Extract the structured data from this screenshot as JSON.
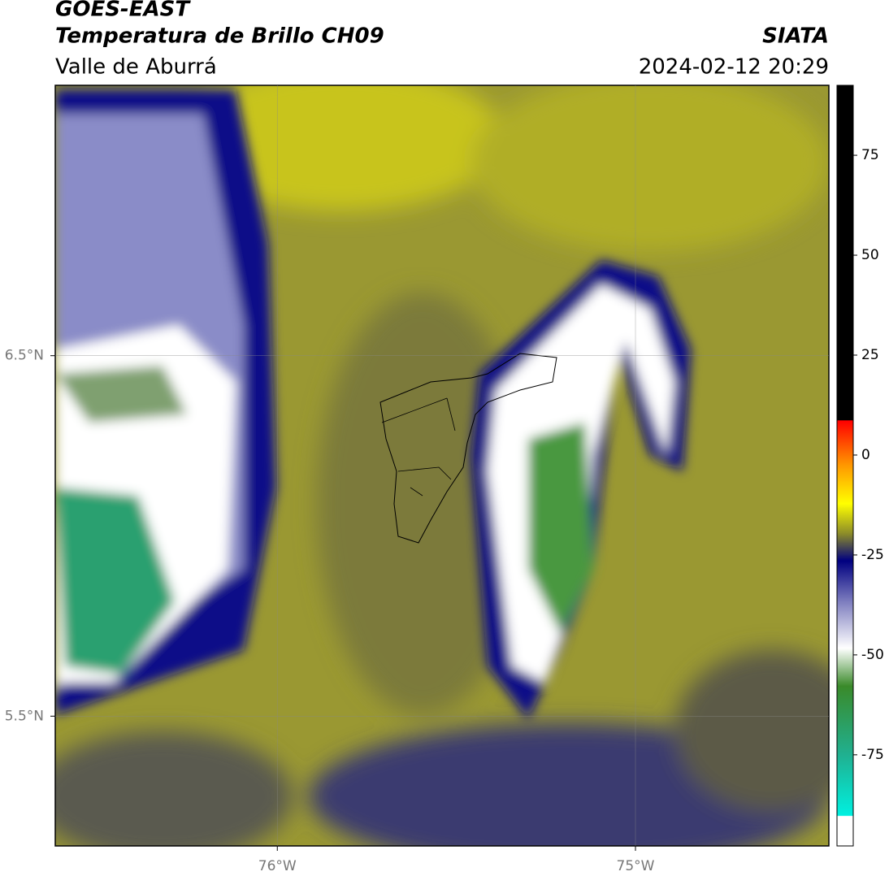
{
  "header": {
    "title": "GOES-EAST",
    "subtitle": "Temperatura de Brillo CH09",
    "region": "Valle de Aburrá",
    "source": "SIATA",
    "timestamp": "2024-02-12 20:29"
  },
  "map": {
    "xlim": [
      -76.62,
      -74.46
    ],
    "ylim": [
      5.14,
      7.25
    ],
    "xticks": [
      {
        "value": -76,
        "label": "76°W"
      },
      {
        "value": -75,
        "label": "75°W"
      }
    ],
    "yticks": [
      {
        "value": 6.5,
        "label": "6.5°N"
      },
      {
        "value": 5.5,
        "label": "5.5°N"
      }
    ],
    "grid": true
  },
  "colorbar": {
    "lim": [
      -97.8,
      92.5
    ],
    "ticks": [
      75,
      50,
      25,
      0,
      -25,
      -50,
      -75
    ]
  }
}
